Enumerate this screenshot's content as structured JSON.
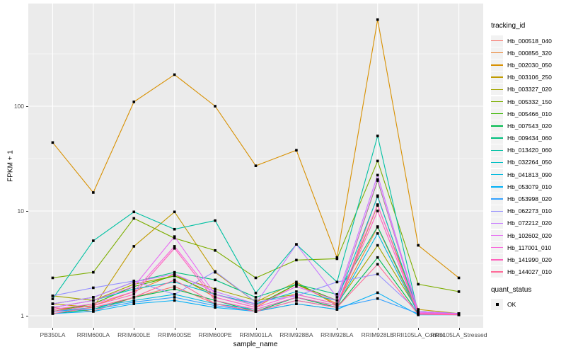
{
  "figure": {
    "background": "#FFFFFF",
    "panel_background": "#EBEBEB",
    "grid_color": "#FFFFFF",
    "tick_label_color": "#4D4D4D",
    "marker_color": "#000000",
    "legend_key_background": "#F2F2F2"
  },
  "chart_data": {
    "type": "line",
    "title": "",
    "xlabel": "sample_name",
    "ylabel": "FPKM + 1",
    "y_scale": "log10",
    "y_ticks": [
      1,
      10,
      100
    ],
    "y_tick_labels": [
      "1",
      "10",
      "100"
    ],
    "y_minor_ticks": [
      3.162,
      31.62,
      316.2
    ],
    "ylim": [
      0.78,
      950
    ],
    "grid": "on",
    "legend_position": "right",
    "legend_title": "tracking_id",
    "marker": "black-square",
    "x_categories": [
      "PB350LA",
      "RRIM600LA",
      "RRIM600LE",
      "RRIM600SE",
      "RRIM600PE",
      "RRIM901LA",
      "RRIM928BA",
      "RRIM928LA",
      "RRIM928LE",
      "RRII105LA_Control",
      "RRII105LA_Stressed"
    ],
    "series": [
      {
        "name": "Hb_000518_040",
        "color": "#F8766D",
        "values": [
          1.2,
          1.1,
          1.5,
          1.9,
          1.3,
          1.1,
          1.3,
          1.15,
          14,
          1.05,
          1.05
        ]
      },
      {
        "name": "Hb_000856_320",
        "color": "#EA8331",
        "values": [
          1.15,
          1.25,
          1.7,
          2.5,
          1.5,
          1.2,
          2.0,
          1.3,
          7.0,
          1.05,
          1.02
        ]
      },
      {
        "name": "Hb_002030_050",
        "color": "#D89000",
        "values": [
          45,
          15,
          110,
          200,
          100,
          27,
          38,
          3.6,
          670,
          4.7,
          2.3
        ]
      },
      {
        "name": "Hb_003106_250",
        "color": "#C09B00",
        "values": [
          1.3,
          1.2,
          4.6,
          9.8,
          2.6,
          1.35,
          2.1,
          1.25,
          11.3,
          1.15,
          1.05
        ]
      },
      {
        "name": "Hb_003327_020",
        "color": "#A3A500",
        "values": [
          1.55,
          1.4,
          2.0,
          2.4,
          1.8,
          1.4,
          1.6,
          1.3,
          4.7,
          1.1,
          1.05
        ]
      },
      {
        "name": "Hb_005332_150",
        "color": "#7CAE00",
        "values": [
          2.3,
          2.6,
          8.5,
          5.5,
          4.2,
          2.3,
          3.4,
          3.5,
          30,
          2.0,
          1.7
        ]
      },
      {
        "name": "Hb_005466_010",
        "color": "#39B600",
        "values": [
          1.1,
          1.3,
          1.9,
          2.4,
          1.6,
          1.25,
          2.0,
          1.4,
          19.5,
          1.1,
          1.05
        ]
      },
      {
        "name": "Hb_007543_020",
        "color": "#00BB4E",
        "values": [
          1.05,
          1.15,
          1.5,
          1.8,
          1.4,
          1.1,
          1.5,
          1.2,
          3.6,
          1.05,
          1.03
        ]
      },
      {
        "name": "Hb_009434_060",
        "color": "#00BF7D",
        "values": [
          1.3,
          1.5,
          2.1,
          2.6,
          2.2,
          1.5,
          2.0,
          1.6,
          7.1,
          1.1,
          1.05
        ]
      },
      {
        "name": "Hb_013420_060",
        "color": "#00C1A3",
        "values": [
          1.45,
          5.2,
          9.8,
          6.7,
          8.1,
          1.65,
          4.8,
          2.1,
          52,
          1.05,
          1.05
        ]
      },
      {
        "name": "Hb_032264_050",
        "color": "#00BFC4",
        "values": [
          1.2,
          1.4,
          1.8,
          2.1,
          1.6,
          1.3,
          1.7,
          1.4,
          13.7,
          1.1,
          1.05
        ]
      },
      {
        "name": "Hb_041813_090",
        "color": "#00BADE",
        "values": [
          1.1,
          1.2,
          1.4,
          1.6,
          1.3,
          1.15,
          1.5,
          1.25,
          6.1,
          1.05,
          1.02
        ]
      },
      {
        "name": "Hb_053079_010",
        "color": "#00B0F6",
        "values": [
          1.05,
          1.1,
          1.3,
          1.4,
          1.2,
          1.1,
          1.3,
          1.15,
          1.66,
          1.02,
          1.02
        ]
      },
      {
        "name": "Hb_053998_020",
        "color": "#35A2FF",
        "values": [
          1.1,
          1.15,
          1.35,
          1.5,
          1.25,
          1.1,
          1.4,
          1.2,
          1.46,
          1.05,
          1.03
        ]
      },
      {
        "name": "Hb_062273_010",
        "color": "#9590FF",
        "values": [
          1.55,
          1.85,
          2.15,
          1.6,
          2.65,
          1.35,
          1.55,
          2.1,
          2.5,
          1.1,
          1.05
        ]
      },
      {
        "name": "Hb_072212_020",
        "color": "#C77CFF",
        "values": [
          1.3,
          1.5,
          2.1,
          2.5,
          1.7,
          1.3,
          4.8,
          1.5,
          22,
          1.1,
          1.05
        ]
      },
      {
        "name": "Hb_102602_020",
        "color": "#E76BF3",
        "values": [
          1.2,
          1.4,
          1.9,
          5.7,
          1.6,
          1.25,
          1.9,
          1.4,
          20,
          1.08,
          1.04
        ]
      },
      {
        "name": "Hb_117001_010",
        "color": "#FA62DB",
        "values": [
          1.15,
          1.3,
          1.7,
          4.6,
          1.5,
          1.2,
          1.6,
          1.3,
          11.5,
          1.06,
          1.03
        ]
      },
      {
        "name": "Hb_141990_020",
        "color": "#FF62BC",
        "values": [
          1.1,
          1.25,
          1.6,
          4.4,
          1.4,
          1.15,
          1.5,
          1.25,
          10,
          1.05,
          1.03
        ]
      },
      {
        "name": "Hb_144027_010",
        "color": "#FF6A98",
        "values": [
          1.05,
          1.2,
          1.5,
          2.2,
          1.3,
          1.1,
          1.4,
          1.2,
          3.1,
          1.03,
          1.02
        ]
      }
    ],
    "quant_legend": {
      "title": "quant_status",
      "items": [
        {
          "label": "OK",
          "marker": "black-square"
        }
      ]
    }
  }
}
